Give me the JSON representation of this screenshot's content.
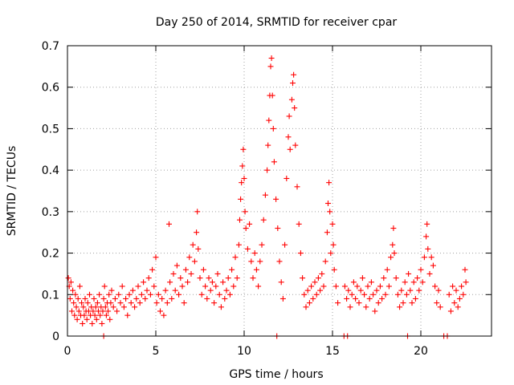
{
  "chart_data": {
    "type": "scatter",
    "title": "Day 250 of 2014, SRMTID for receiver cpar",
    "xlabel": "GPS time / hours",
    "ylabel": "SRMTID / TECUs",
    "xlim": [
      0,
      24
    ],
    "ylim": [
      0,
      0.7
    ],
    "xticks": [
      0,
      5,
      10,
      15,
      20
    ],
    "yticks": [
      0,
      0.1,
      0.2,
      0.3,
      0.4,
      0.5,
      0.6,
      0.7
    ],
    "xtick_labels": [
      "0",
      "5",
      "10",
      "15",
      "20"
    ],
    "ytick_labels": [
      "0",
      "0.1",
      "0.2",
      "0.3",
      "0.4",
      "0.5",
      "0.6",
      "0.7"
    ],
    "grid": true,
    "marker": "plus",
    "color": "#ff0000",
    "points": [
      [
        0.05,
        0.14
      ],
      [
        0.1,
        0.12
      ],
      [
        0.15,
        0.09
      ],
      [
        0.2,
        0.13
      ],
      [
        0.25,
        0.06
      ],
      [
        0.3,
        0.11
      ],
      [
        0.35,
        0.08
      ],
      [
        0.4,
        0.05
      ],
      [
        0.45,
        0.1
      ],
      [
        0.5,
        0.07
      ],
      [
        0.55,
        0.04
      ],
      [
        0.6,
        0.09
      ],
      [
        0.65,
        0.06
      ],
      [
        0.7,
        0.12
      ],
      [
        0.75,
        0.05
      ],
      [
        0.8,
        0.08
      ],
      [
        0.85,
        0.03
      ],
      [
        0.9,
        0.07
      ],
      [
        0.95,
        0.05
      ],
      [
        1.0,
        0.09
      ],
      [
        1.05,
        0.06
      ],
      [
        1.1,
        0.04
      ],
      [
        1.15,
        0.08
      ],
      [
        1.2,
        0.06
      ],
      [
        1.25,
        0.1
      ],
      [
        1.3,
        0.05
      ],
      [
        1.35,
        0.07
      ],
      [
        1.4,
        0.03
      ],
      [
        1.45,
        0.06
      ],
      [
        1.5,
        0.09
      ],
      [
        1.55,
        0.05
      ],
      [
        1.6,
        0.07
      ],
      [
        1.65,
        0.04
      ],
      [
        1.7,
        0.08
      ],
      [
        1.75,
        0.06
      ],
      [
        1.8,
        0.1
      ],
      [
        1.85,
        0.05
      ],
      [
        1.9,
        0.07
      ],
      [
        1.95,
        0.03
      ],
      [
        2.0,
        0.06
      ],
      [
        2.05,
        0.09
      ],
      [
        2.1,
        0.12
      ],
      [
        2.15,
        0.07
      ],
      [
        2.2,
        0.05
      ],
      [
        2.25,
        0.08
      ],
      [
        2.3,
        0.06
      ],
      [
        2.35,
        0.1
      ],
      [
        2.4,
        0.04
      ],
      [
        2.45,
        0.08
      ],
      [
        2.5,
        0.11
      ],
      [
        2.6,
        0.07
      ],
      [
        2.7,
        0.09
      ],
      [
        2.8,
        0.06
      ],
      [
        2.9,
        0.1
      ],
      [
        3.0,
        0.08
      ],
      [
        3.1,
        0.12
      ],
      [
        3.2,
        0.07
      ],
      [
        3.3,
        0.09
      ],
      [
        3.4,
        0.05
      ],
      [
        3.5,
        0.1
      ],
      [
        3.6,
        0.08
      ],
      [
        3.7,
        0.11
      ],
      [
        3.8,
        0.07
      ],
      [
        3.9,
        0.09
      ],
      [
        4.0,
        0.12
      ],
      [
        4.1,
        0.08
      ],
      [
        4.2,
        0.1
      ],
      [
        4.3,
        0.13
      ],
      [
        4.4,
        0.09
      ],
      [
        4.5,
        0.11
      ],
      [
        4.6,
        0.14
      ],
      [
        4.7,
        0.1
      ],
      [
        4.8,
        0.16
      ],
      [
        4.9,
        0.12
      ],
      [
        5.0,
        0.19
      ],
      [
        5.05,
        0.08
      ],
      [
        5.15,
        0.1
      ],
      [
        5.25,
        0.06
      ],
      [
        5.35,
        0.09
      ],
      [
        5.45,
        0.05
      ],
      [
        5.55,
        0.11
      ],
      [
        5.65,
        0.08
      ],
      [
        5.75,
        0.27
      ],
      [
        5.8,
        0.13
      ],
      [
        5.9,
        0.09
      ],
      [
        6.0,
        0.15
      ],
      [
        6.1,
        0.11
      ],
      [
        6.2,
        0.17
      ],
      [
        6.3,
        0.1
      ],
      [
        6.4,
        0.14
      ],
      [
        6.5,
        0.12
      ],
      [
        6.6,
        0.08
      ],
      [
        6.7,
        0.16
      ],
      [
        6.8,
        0.13
      ],
      [
        6.9,
        0.19
      ],
      [
        7.0,
        0.15
      ],
      [
        7.1,
        0.22
      ],
      [
        7.2,
        0.18
      ],
      [
        7.3,
        0.25
      ],
      [
        7.35,
        0.3
      ],
      [
        7.4,
        0.21
      ],
      [
        7.5,
        0.14
      ],
      [
        7.6,
        0.1
      ],
      [
        7.7,
        0.16
      ],
      [
        7.8,
        0.12
      ],
      [
        7.9,
        0.09
      ],
      [
        8.0,
        0.14
      ],
      [
        8.1,
        0.11
      ],
      [
        8.2,
        0.13
      ],
      [
        8.3,
        0.08
      ],
      [
        8.4,
        0.12
      ],
      [
        8.5,
        0.15
      ],
      [
        8.6,
        0.1
      ],
      [
        8.7,
        0.07
      ],
      [
        8.8,
        0.13
      ],
      [
        8.9,
        0.09
      ],
      [
        9.0,
        0.11
      ],
      [
        9.1,
        0.14
      ],
      [
        9.2,
        0.1
      ],
      [
        9.3,
        0.16
      ],
      [
        9.4,
        0.12
      ],
      [
        9.5,
        0.19
      ],
      [
        9.6,
        0.14
      ],
      [
        9.7,
        0.22
      ],
      [
        9.75,
        0.28
      ],
      [
        9.8,
        0.33
      ],
      [
        9.85,
        0.37
      ],
      [
        9.9,
        0.41
      ],
      [
        9.95,
        0.45
      ],
      [
        10.0,
        0.38
      ],
      [
        10.05,
        0.3
      ],
      [
        10.1,
        0.26
      ],
      [
        10.2,
        0.21
      ],
      [
        10.3,
        0.27
      ],
      [
        10.4,
        0.18
      ],
      [
        10.5,
        0.14
      ],
      [
        10.6,
        0.2
      ],
      [
        10.7,
        0.16
      ],
      [
        10.8,
        0.12
      ],
      [
        10.9,
        0.18
      ],
      [
        11.0,
        0.22
      ],
      [
        11.1,
        0.28
      ],
      [
        11.2,
        0.34
      ],
      [
        11.3,
        0.4
      ],
      [
        11.35,
        0.46
      ],
      [
        11.4,
        0.52
      ],
      [
        11.45,
        0.58
      ],
      [
        11.5,
        0.65
      ],
      [
        11.55,
        0.67
      ],
      [
        11.6,
        0.58
      ],
      [
        11.65,
        0.5
      ],
      [
        11.7,
        0.42
      ],
      [
        11.8,
        0.33
      ],
      [
        11.9,
        0.26
      ],
      [
        12.0,
        0.18
      ],
      [
        12.1,
        0.13
      ],
      [
        12.2,
        0.09
      ],
      [
        12.3,
        0.22
      ],
      [
        12.4,
        0.38
      ],
      [
        12.5,
        0.48
      ],
      [
        12.55,
        0.53
      ],
      [
        12.6,
        0.45
      ],
      [
        12.7,
        0.57
      ],
      [
        12.75,
        0.61
      ],
      [
        12.8,
        0.63
      ],
      [
        12.85,
        0.55
      ],
      [
        12.9,
        0.46
      ],
      [
        13.0,
        0.36
      ],
      [
        13.1,
        0.27
      ],
      [
        13.2,
        0.2
      ],
      [
        13.3,
        0.14
      ],
      [
        13.4,
        0.1
      ],
      [
        13.5,
        0.07
      ],
      [
        13.6,
        0.11
      ],
      [
        13.7,
        0.08
      ],
      [
        13.8,
        0.12
      ],
      [
        13.9,
        0.09
      ],
      [
        14.0,
        0.13
      ],
      [
        14.1,
        0.1
      ],
      [
        14.2,
        0.14
      ],
      [
        14.3,
        0.11
      ],
      [
        14.4,
        0.15
      ],
      [
        14.5,
        0.12
      ],
      [
        14.6,
        0.18
      ],
      [
        14.7,
        0.25
      ],
      [
        14.75,
        0.32
      ],
      [
        14.8,
        0.37
      ],
      [
        14.85,
        0.3
      ],
      [
        14.9,
        0.2
      ],
      [
        15.0,
        0.27
      ],
      [
        15.05,
        0.22
      ],
      [
        15.1,
        0.16
      ],
      [
        15.2,
        0.12
      ],
      [
        15.3,
        0.08
      ],
      [
        15.7,
        0.12
      ],
      [
        15.8,
        0.09
      ],
      [
        15.9,
        0.11
      ],
      [
        16.0,
        0.07
      ],
      [
        16.1,
        0.1
      ],
      [
        16.2,
        0.13
      ],
      [
        16.3,
        0.09
      ],
      [
        16.4,
        0.12
      ],
      [
        16.5,
        0.08
      ],
      [
        16.6,
        0.11
      ],
      [
        16.7,
        0.14
      ],
      [
        16.8,
        0.1
      ],
      [
        16.9,
        0.07
      ],
      [
        17.0,
        0.12
      ],
      [
        17.1,
        0.09
      ],
      [
        17.2,
        0.13
      ],
      [
        17.3,
        0.1
      ],
      [
        17.4,
        0.06
      ],
      [
        17.5,
        0.11
      ],
      [
        17.6,
        0.08
      ],
      [
        17.7,
        0.12
      ],
      [
        17.8,
        0.09
      ],
      [
        17.9,
        0.14
      ],
      [
        18.0,
        0.1
      ],
      [
        18.1,
        0.16
      ],
      [
        18.2,
        0.12
      ],
      [
        18.3,
        0.19
      ],
      [
        18.4,
        0.22
      ],
      [
        18.45,
        0.26
      ],
      [
        18.5,
        0.2
      ],
      [
        18.6,
        0.14
      ],
      [
        18.7,
        0.1
      ],
      [
        18.8,
        0.07
      ],
      [
        18.9,
        0.11
      ],
      [
        19.0,
        0.08
      ],
      [
        19.1,
        0.13
      ],
      [
        19.2,
        0.1
      ],
      [
        19.3,
        0.15
      ],
      [
        19.4,
        0.11
      ],
      [
        19.5,
        0.08
      ],
      [
        19.6,
        0.13
      ],
      [
        19.7,
        0.09
      ],
      [
        19.8,
        0.14
      ],
      [
        19.9,
        0.11
      ],
      [
        20.0,
        0.16
      ],
      [
        20.1,
        0.13
      ],
      [
        20.2,
        0.19
      ],
      [
        20.3,
        0.24
      ],
      [
        20.35,
        0.27
      ],
      [
        20.4,
        0.21
      ],
      [
        20.5,
        0.15
      ],
      [
        20.6,
        0.19
      ],
      [
        20.7,
        0.17
      ],
      [
        20.8,
        0.12
      ],
      [
        20.9,
        0.08
      ],
      [
        21.0,
        0.11
      ],
      [
        21.1,
        0.07
      ],
      [
        21.6,
        0.1
      ],
      [
        21.7,
        0.06
      ],
      [
        21.8,
        0.12
      ],
      [
        21.9,
        0.08
      ],
      [
        22.0,
        0.11
      ],
      [
        22.1,
        0.07
      ],
      [
        22.2,
        0.09
      ],
      [
        22.3,
        0.12
      ],
      [
        22.4,
        0.1
      ],
      [
        22.5,
        0.16
      ],
      [
        22.55,
        0.13
      ],
      [
        11.85,
        0.0
      ],
      [
        15.65,
        0.0
      ],
      [
        15.85,
        0.0
      ],
      [
        19.25,
        0.0
      ],
      [
        21.3,
        0.0
      ],
      [
        21.5,
        0.0
      ],
      [
        2.05,
        0.0
      ]
    ]
  }
}
